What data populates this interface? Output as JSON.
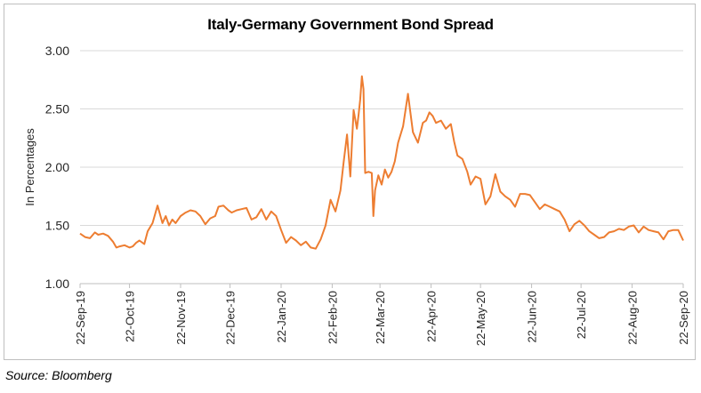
{
  "source_text": "Source: Bloomberg",
  "chart_data": {
    "type": "line",
    "title": "Italy-Germany Government Bond Spread",
    "xlabel": "",
    "ylabel": "In Percentages",
    "ylim": [
      1.0,
      3.0
    ],
    "y_ticks": [
      "1.00",
      "1.50",
      "2.00",
      "2.50",
      "3.00"
    ],
    "x_ticks": [
      "22-Sep-19",
      "22-Oct-19",
      "22-Nov-19",
      "22-Dec-19",
      "22-Jan-20",
      "22-Feb-20",
      "22-Mar-20",
      "22-Apr-20",
      "22-May-20",
      "22-Jun-20",
      "22-Jul-20",
      "22-Aug-20",
      "22-Sep-20"
    ],
    "grid": "horizontal",
    "legend": "none",
    "line_color": "#ED7D31",
    "series": [
      {
        "x": [
          "2019-09-22",
          "2019-09-25",
          "2019-09-28",
          "2019-10-01",
          "2019-10-03",
          "2019-10-06",
          "2019-10-09",
          "2019-10-12",
          "2019-10-14",
          "2019-10-16",
          "2019-10-19",
          "2019-10-22",
          "2019-10-24",
          "2019-10-26",
          "2019-10-28",
          "2019-10-31",
          "2019-11-02",
          "2019-11-05",
          "2019-11-08",
          "2019-11-11",
          "2019-11-13",
          "2019-11-15",
          "2019-11-17",
          "2019-11-19",
          "2019-11-22",
          "2019-11-25",
          "2019-11-28",
          "2019-12-01",
          "2019-12-04",
          "2019-12-07",
          "2019-12-10",
          "2019-12-13",
          "2019-12-15",
          "2019-12-18",
          "2019-12-21",
          "2019-12-23",
          "2019-12-26",
          "2019-12-29",
          "2020-01-01",
          "2020-01-04",
          "2020-01-07",
          "2020-01-10",
          "2020-01-13",
          "2020-01-16",
          "2020-01-19",
          "2020-01-22",
          "2020-01-25",
          "2020-01-28",
          "2020-01-31",
          "2020-02-03",
          "2020-02-06",
          "2020-02-09",
          "2020-02-12",
          "2020-02-15",
          "2020-02-18",
          "2020-02-21",
          "2020-02-24",
          "2020-02-27",
          "2020-02-29",
          "2020-03-02",
          "2020-03-04",
          "2020-03-06",
          "2020-03-08",
          "2020-03-09",
          "2020-03-10",
          "2020-03-11",
          "2020-03-12",
          "2020-03-13",
          "2020-03-15",
          "2020-03-17",
          "2020-03-18",
          "2020-03-19",
          "2020-03-21",
          "2020-03-23",
          "2020-03-25",
          "2020-03-27",
          "2020-03-29",
          "2020-03-31",
          "2020-04-02",
          "2020-04-05",
          "2020-04-08",
          "2020-04-11",
          "2020-04-14",
          "2020-04-17",
          "2020-04-19",
          "2020-04-21",
          "2020-04-23",
          "2020-04-25",
          "2020-04-28",
          "2020-05-01",
          "2020-05-04",
          "2020-05-06",
          "2020-05-08",
          "2020-05-11",
          "2020-05-14",
          "2020-05-16",
          "2020-05-19",
          "2020-05-22",
          "2020-05-25",
          "2020-05-28",
          "2020-05-31",
          "2020-06-03",
          "2020-06-06",
          "2020-06-09",
          "2020-06-12",
          "2020-06-15",
          "2020-06-18",
          "2020-06-21",
          "2020-06-24",
          "2020-06-27",
          "2020-06-30",
          "2020-07-03",
          "2020-07-06",
          "2020-07-09",
          "2020-07-12",
          "2020-07-15",
          "2020-07-18",
          "2020-07-21",
          "2020-07-24",
          "2020-07-27",
          "2020-07-30",
          "2020-08-02",
          "2020-08-05",
          "2020-08-08",
          "2020-08-11",
          "2020-08-14",
          "2020-08-17",
          "2020-08-20",
          "2020-08-23",
          "2020-08-26",
          "2020-08-29",
          "2020-09-01",
          "2020-09-04",
          "2020-09-07",
          "2020-09-10",
          "2020-09-13",
          "2020-09-16",
          "2020-09-19",
          "2020-09-22"
        ],
        "y": [
          1.43,
          1.4,
          1.39,
          1.44,
          1.42,
          1.43,
          1.41,
          1.36,
          1.31,
          1.32,
          1.33,
          1.31,
          1.32,
          1.35,
          1.37,
          1.34,
          1.45,
          1.52,
          1.67,
          1.52,
          1.58,
          1.5,
          1.55,
          1.52,
          1.58,
          1.61,
          1.63,
          1.62,
          1.58,
          1.51,
          1.56,
          1.58,
          1.66,
          1.67,
          1.63,
          1.61,
          1.63,
          1.64,
          1.65,
          1.55,
          1.57,
          1.64,
          1.55,
          1.62,
          1.58,
          1.46,
          1.35,
          1.4,
          1.37,
          1.33,
          1.36,
          1.31,
          1.3,
          1.38,
          1.5,
          1.72,
          1.62,
          1.8,
          2.05,
          2.28,
          1.92,
          2.49,
          2.33,
          2.45,
          2.58,
          2.78,
          2.67,
          1.95,
          1.96,
          1.95,
          1.58,
          1.8,
          1.93,
          1.85,
          1.98,
          1.91,
          1.96,
          2.05,
          2.21,
          2.35,
          2.63,
          2.3,
          2.21,
          2.38,
          2.4,
          2.47,
          2.44,
          2.38,
          2.4,
          2.33,
          2.37,
          2.22,
          2.1,
          2.07,
          1.96,
          1.85,
          1.92,
          1.9,
          1.68,
          1.75,
          1.94,
          1.79,
          1.75,
          1.72,
          1.66,
          1.77,
          1.77,
          1.76,
          1.7,
          1.64,
          1.68,
          1.66,
          1.64,
          1.62,
          1.55,
          1.45,
          1.51,
          1.54,
          1.5,
          1.45,
          1.42,
          1.39,
          1.4,
          1.44,
          1.45,
          1.47,
          1.46,
          1.49,
          1.5,
          1.44,
          1.49,
          1.46,
          1.45,
          1.44,
          1.38,
          1.45,
          1.46,
          1.46,
          1.37
        ]
      }
    ]
  }
}
